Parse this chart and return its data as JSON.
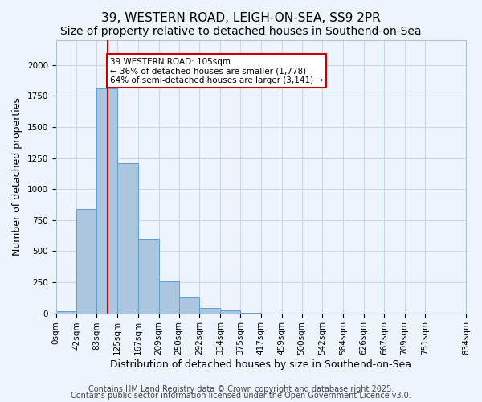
{
  "title": "39, WESTERN ROAD, LEIGH-ON-SEA, SS9 2PR",
  "subtitle": "Size of property relative to detached houses in Southend-on-Sea",
  "xlabel": "Distribution of detached houses by size in Southend-on-Sea",
  "ylabel": "Number of detached properties",
  "bar_values": [
    20,
    840,
    1810,
    1210,
    600,
    255,
    125,
    45,
    25,
    5,
    0,
    0,
    0,
    0,
    0,
    0,
    0,
    0,
    0
  ],
  "bin_edges": [
    0,
    42,
    83,
    125,
    167,
    209,
    250,
    292,
    334,
    375,
    417,
    459,
    500,
    542,
    584,
    626,
    667,
    709,
    751,
    834
  ],
  "tick_labels": [
    "0sqm",
    "42sqm",
    "83sqm",
    "125sqm",
    "167sqm",
    "209sqm",
    "250sqm",
    "292sqm",
    "334sqm",
    "375sqm",
    "417sqm",
    "459sqm",
    "500sqm",
    "542sqm",
    "584sqm",
    "626sqm",
    "667sqm",
    "709sqm",
    "751sqm",
    "834sqm"
  ],
  "bar_color": "#adc6e0",
  "bar_edge_color": "#5a9fd4",
  "grid_color": "#c8d8e8",
  "background_color": "#eef4fb",
  "vline_x": 105,
  "vline_color": "#cc0000",
  "annotation_text": "39 WESTERN ROAD: 105sqm\n← 36% of detached houses are smaller (1,778)\n64% of semi-detached houses are larger (3,141) →",
  "annotation_box_color": "#ffffff",
  "annotation_box_edge": "#cc0000",
  "ylim": [
    0,
    2200
  ],
  "footer1": "Contains HM Land Registry data © Crown copyright and database right 2025.",
  "footer2": "Contains public sector information licensed under the Open Government Licence v3.0.",
  "title_fontsize": 11,
  "subtitle_fontsize": 10,
  "ylabel_fontsize": 9,
  "xlabel_fontsize": 9,
  "tick_fontsize": 7.5,
  "footer_fontsize": 7
}
